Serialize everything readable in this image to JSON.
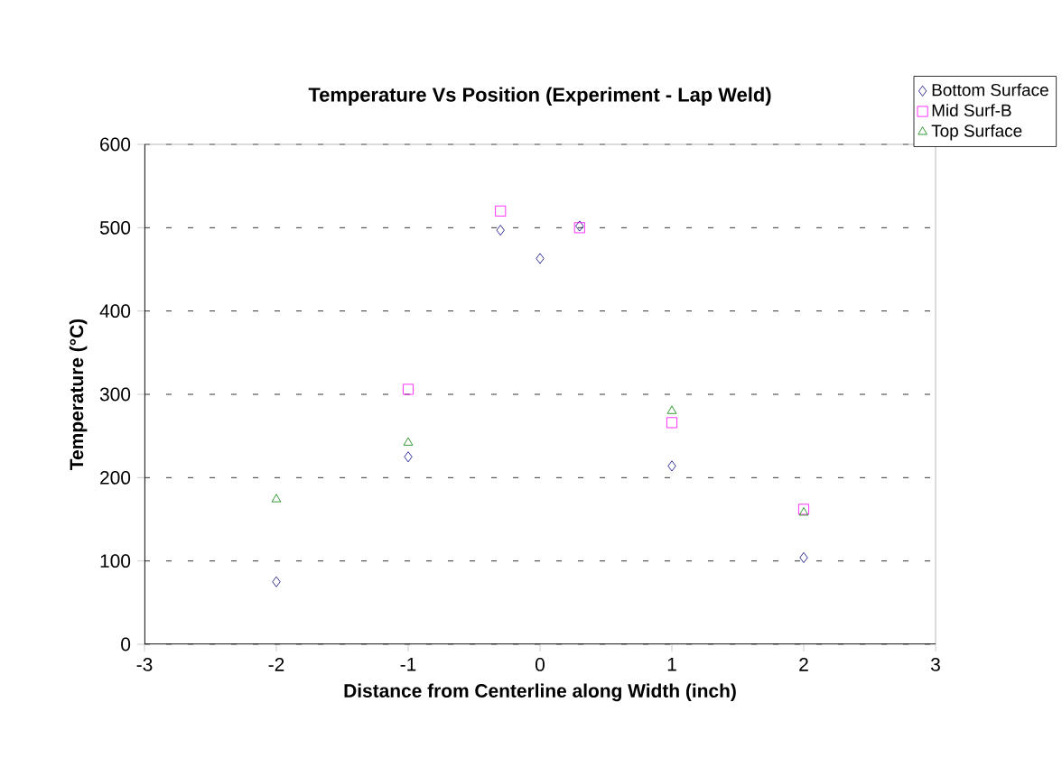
{
  "chart_data": {
    "type": "scatter",
    "title": "Temperature Vs Position (Experiment - Lap Weld)",
    "xlabel": "Distance from Centerline along Width (inch)",
    "ylabel": "Temperature (°C)",
    "xlim": [
      -3,
      3
    ],
    "xticks": [
      -3,
      -2,
      -1,
      0,
      1,
      2,
      3
    ],
    "ylim": [
      0,
      600
    ],
    "yticks": [
      0,
      100,
      200,
      300,
      400,
      500,
      600
    ],
    "grid": "y",
    "legend": "top right",
    "series": [
      {
        "name": "Bottom Surface",
        "color": "#000080",
        "marker": "diamond",
        "x": [
          -2,
          -1,
          -0.3,
          0,
          0.3,
          1,
          2
        ],
        "values": [
          75,
          225,
          497,
          463,
          502,
          214,
          104
        ]
      },
      {
        "name": "Mid Surf-B",
        "color": "#ff00ff",
        "marker": "square",
        "x": [
          -1,
          -0.3,
          0.3,
          1,
          2
        ],
        "values": [
          306,
          520,
          500,
          266,
          162
        ]
      },
      {
        "name": "Top Surface",
        "color": "#008000",
        "marker": "triangle",
        "x": [
          -2,
          -1,
          1,
          2
        ],
        "values": [
          174,
          242,
          280,
          158
        ]
      }
    ]
  }
}
